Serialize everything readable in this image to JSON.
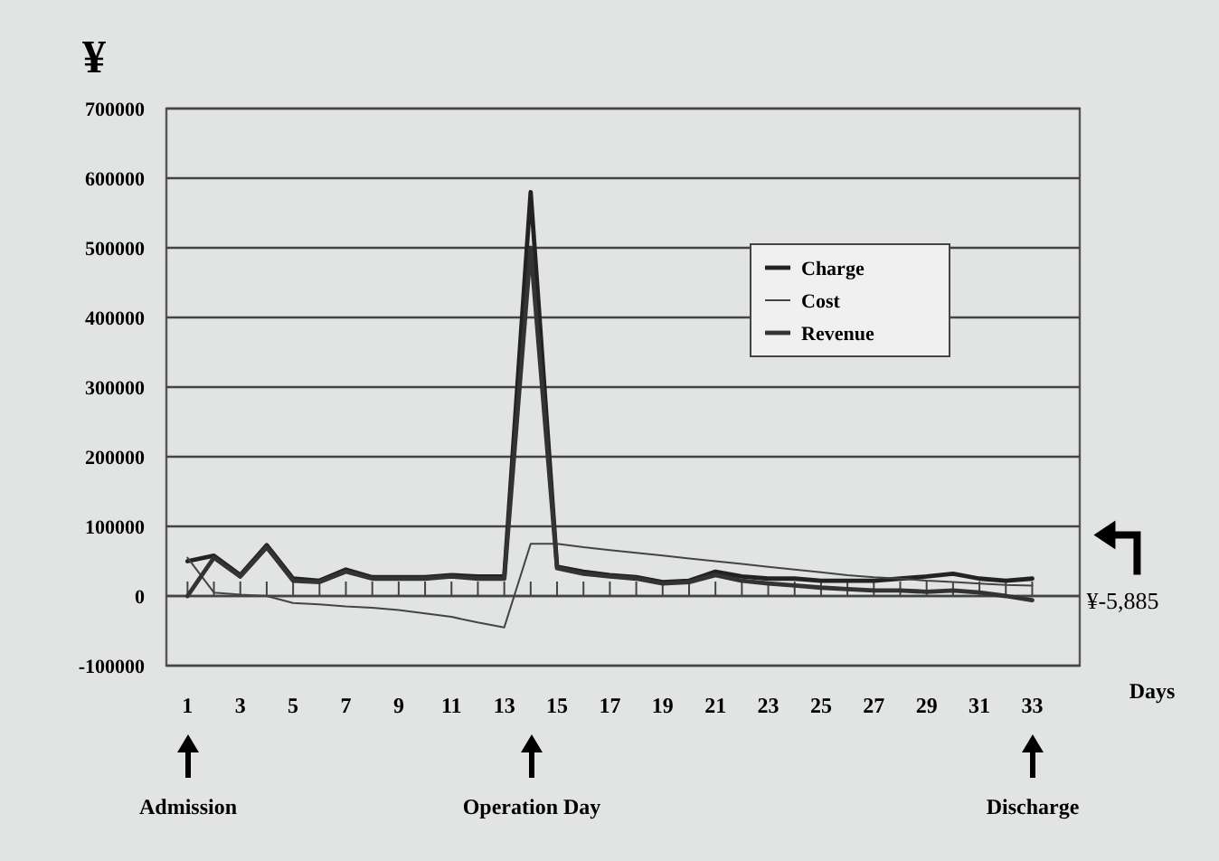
{
  "chart_data": {
    "type": "line",
    "ylabel": "¥",
    "xlabel": "Days",
    "x": [
      1,
      2,
      3,
      4,
      5,
      6,
      7,
      8,
      9,
      10,
      11,
      12,
      13,
      14,
      15,
      16,
      17,
      18,
      19,
      20,
      21,
      22,
      23,
      24,
      25,
      26,
      27,
      28,
      29,
      30,
      31,
      32,
      33
    ],
    "xlim": [
      0.2,
      34.8
    ],
    "xticks": [
      1,
      {
        "value": 2,
        "label": null
      },
      3,
      {
        "value": 4,
        "label": null
      },
      5,
      {
        "value": 6,
        "label": null
      },
      7,
      {
        "value": 8,
        "label": null
      },
      9,
      {
        "value": 10,
        "label": null
      },
      11,
      {
        "value": 12,
        "label": null
      },
      13,
      {
        "value": 14,
        "label": null
      },
      15,
      {
        "value": 16,
        "label": null
      },
      17,
      {
        "value": 18,
        "label": null
      },
      19,
      {
        "value": 20,
        "label": null
      },
      21,
      {
        "value": 22,
        "label": null
      },
      23,
      {
        "value": 24,
        "label": null
      },
      25,
      {
        "value": 26,
        "label": null
      },
      27,
      {
        "value": 28,
        "label": null
      },
      29,
      {
        "value": 30,
        "label": null
      },
      31,
      {
        "value": 32,
        "label": null
      },
      33
    ],
    "ylim": [
      -100000,
      700000
    ],
    "yticks": [
      -100000,
      0,
      100000,
      200000,
      300000,
      400000,
      500000,
      600000,
      700000
    ],
    "grid": "y",
    "legend": "top right",
    "marker": "none",
    "line_style": "solid",
    "series": [
      {
        "name": "Charge",
        "color": "#222222",
        "values": [
          50000,
          58000,
          30000,
          73000,
          25000,
          22000,
          38000,
          27000,
          27000,
          27000,
          30000,
          28000,
          28000,
          580000,
          42000,
          35000,
          30000,
          27000,
          20000,
          22000,
          35000,
          28000,
          25000,
          25000,
          22000,
          22000,
          22000,
          25000,
          28000,
          32000,
          25000,
          22000,
          25000
        ]
      },
      {
        "name": "Cost",
        "color": "#444444",
        "values": [
          55000,
          5000,
          2000,
          0,
          -10000,
          -12000,
          -15000,
          -17000,
          -20000,
          -25000,
          -30000,
          -38000,
          -45000,
          75000,
          75000,
          70000,
          66000,
          62000,
          58000,
          54000,
          50000,
          46000,
          42000,
          38000,
          34000,
          30000,
          27000,
          25000,
          22000,
          20000,
          18000,
          16000,
          15000
        ]
      },
      {
        "name": "Revenue",
        "color": "#333333",
        "values": [
          0,
          55000,
          28000,
          70000,
          22000,
          20000,
          35000,
          25000,
          25000,
          25000,
          28000,
          25000,
          25000,
          500000,
          40000,
          32000,
          28000,
          25000,
          18000,
          20000,
          30000,
          22000,
          18000,
          15000,
          12000,
          10000,
          8000,
          8000,
          6000,
          8000,
          5000,
          0,
          -5885
        ]
      }
    ],
    "annotations": [
      {
        "text": "¥-5,885",
        "x": 33,
        "y": -5885
      },
      "Admission",
      "Operation Day",
      "Discharge"
    ]
  }
}
